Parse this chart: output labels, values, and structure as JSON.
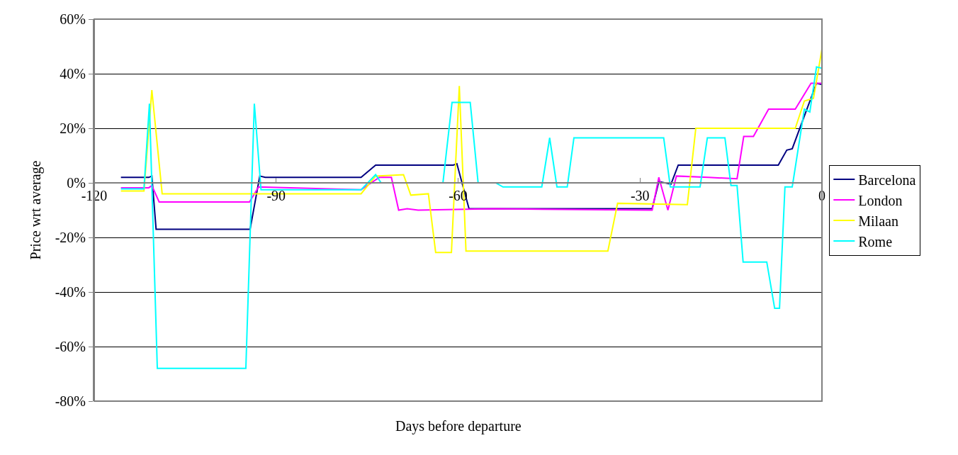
{
  "chart_data": {
    "type": "line",
    "xlabel": "Days before departure",
    "ylabel": "Price wrt average",
    "xlim": [
      -120,
      0
    ],
    "xticks": [
      -120,
      -90,
      -60,
      -30,
      0
    ],
    "ylim": [
      -80,
      60
    ],
    "yticks": [
      {
        "value": -80,
        "label": "-80%"
      },
      {
        "value": -60,
        "label": "-60%"
      },
      {
        "value": -40,
        "label": "-40%"
      },
      {
        "value": -20,
        "label": "-20%"
      },
      {
        "value": 0,
        "label": "0%"
      },
      {
        "value": 20,
        "label": "20%"
      },
      {
        "value": 40,
        "label": "40%"
      },
      {
        "value": 60,
        "label": "60%"
      }
    ],
    "grid": "y",
    "legend": "right",
    "marker": "none",
    "line_style": "solid",
    "series": [
      {
        "name": "Barcelona",
        "color": "#000080",
        "x": [
          -115.6,
          -111,
          -110.5,
          -109.8,
          -94.3,
          -92.7,
          -91.8,
          -76,
          -73.6,
          -60.8,
          -60.2,
          -58.2,
          -28,
          -26.9,
          -24.9,
          -23.7,
          -7.2,
          -5.8,
          -4.9,
          -0.9,
          0
        ],
        "values": [
          2,
          2,
          2.5,
          -17,
          -17,
          2.5,
          2,
          2,
          6.5,
          6.5,
          7,
          -9.5,
          -9.5,
          0.5,
          -0.5,
          6.5,
          6.5,
          12,
          12.5,
          36.5,
          36
        ]
      },
      {
        "name": "London",
        "color": "#ff00ff",
        "x": [
          -115.6,
          -111,
          -110.5,
          -109.3,
          -94.4,
          -92.9,
          -76,
          -73,
          -71,
          -69.8,
          -68.4,
          -66.6,
          -54,
          -28,
          -26.9,
          -25.4,
          -24,
          -18.7,
          -14,
          -12.9,
          -11.3,
          -8.8,
          -4.4,
          -1.8,
          0
        ],
        "values": [
          -1.8,
          -1.8,
          -1,
          -7,
          -7,
          -1.5,
          -2.5,
          2,
          2,
          -10,
          -9.5,
          -10,
          -9.5,
          -10,
          2,
          -10,
          2.5,
          2,
          1.5,
          17,
          17,
          27,
          27,
          36.5,
          36.5
        ]
      },
      {
        "name": "Milaan",
        "color": "#ffff00",
        "x": [
          -115.6,
          -111.8,
          -110.5,
          -108.8,
          -76,
          -73.6,
          -69,
          -67.8,
          -64.9,
          -63.7,
          -61.1,
          -59.8,
          -58.7,
          -35.3,
          -33.7,
          -22.2,
          -20.8,
          -4.4,
          -2.9,
          -1.4,
          0
        ],
        "values": [
          -3,
          -3,
          34,
          -4,
          -4,
          2.5,
          3,
          -4.5,
          -4,
          -25.5,
          -25.5,
          35.5,
          -25,
          -25,
          -7.5,
          -8,
          20,
          20,
          30,
          31,
          49
        ]
      },
      {
        "name": "Rome",
        "color": "#00ffff",
        "x": [
          -115.6,
          -111.8,
          -110.9,
          -109.6,
          -95,
          -93.6,
          -92.5,
          -76,
          -73.6,
          -72.7,
          -62.5,
          -61,
          -58,
          -56.7,
          -53.8,
          -52.6,
          -46.2,
          -44.9,
          -43.7,
          -42,
          -40.9,
          -26.1,
          -25,
          -20.1,
          -18.9,
          -16,
          -15,
          -14,
          -13,
          -9.1,
          -7.8,
          -7,
          -6.1,
          -4.9,
          -2.9,
          -2,
          -0.9,
          0
        ],
        "values": [
          -2.2,
          -2.2,
          29,
          -68,
          -68,
          29,
          -2.5,
          -2.5,
          3,
          0,
          0,
          29.5,
          29.5,
          0,
          0,
          -1.5,
          -1.5,
          16.5,
          -1.5,
          -1.5,
          16.5,
          16.5,
          -1.5,
          -1.5,
          16.5,
          16.5,
          -1,
          -1,
          -29,
          -29,
          -46,
          -46,
          -1.5,
          -1.5,
          27,
          26,
          42.5,
          42
        ]
      }
    ]
  }
}
